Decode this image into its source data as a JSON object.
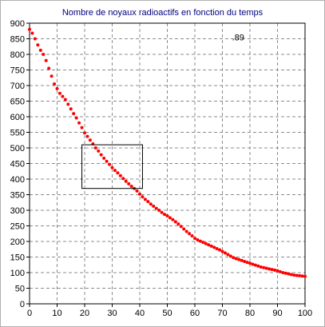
{
  "chart_data": {
    "type": "scatter",
    "title": "Nombre de noyaux radioactifs en fonction du temps",
    "xlabel": "",
    "ylabel": "",
    "xlim": [
      0,
      100
    ],
    "ylim": [
      0,
      900
    ],
    "xticks": [
      0,
      10,
      20,
      30,
      40,
      50,
      60,
      70,
      80,
      90,
      100
    ],
    "yticks": [
      0,
      50,
      100,
      150,
      200,
      250,
      300,
      350,
      400,
      450,
      500,
      550,
      600,
      650,
      700,
      750,
      800,
      850,
      900
    ],
    "grid": true,
    "marker_color": "#ff0000",
    "series": [
      {
        "points": [
          [
            0,
            880
          ],
          [
            1,
            868
          ],
          [
            2,
            850
          ],
          [
            3,
            830
          ],
          [
            4,
            813
          ],
          [
            5,
            800
          ],
          [
            6,
            780
          ],
          [
            7,
            755
          ],
          [
            8,
            730
          ],
          [
            9,
            705
          ],
          [
            10,
            690
          ],
          [
            11,
            675
          ],
          [
            12,
            665
          ],
          [
            13,
            655
          ],
          [
            14,
            640
          ],
          [
            15,
            625
          ],
          [
            16,
            610
          ],
          [
            17,
            596
          ],
          [
            18,
            580
          ],
          [
            19,
            565
          ],
          [
            20,
            548
          ],
          [
            21,
            537
          ],
          [
            22,
            525
          ],
          [
            23,
            513
          ],
          [
            24,
            500
          ],
          [
            25,
            490
          ],
          [
            26,
            478
          ],
          [
            27,
            467
          ],
          [
            28,
            457
          ],
          [
            29,
            447
          ],
          [
            30,
            437
          ],
          [
            31,
            428
          ],
          [
            32,
            420
          ],
          [
            33,
            411
          ],
          [
            34,
            402
          ],
          [
            35,
            393
          ],
          [
            36,
            385
          ],
          [
            37,
            377
          ],
          [
            38,
            370
          ],
          [
            39,
            362
          ],
          [
            40,
            352
          ],
          [
            41,
            343
          ],
          [
            42,
            335
          ],
          [
            43,
            328
          ],
          [
            44,
            320
          ],
          [
            45,
            313
          ],
          [
            46,
            306
          ],
          [
            47,
            300
          ],
          [
            48,
            293
          ],
          [
            49,
            287
          ],
          [
            50,
            282
          ],
          [
            51,
            276
          ],
          [
            52,
            270
          ],
          [
            53,
            263
          ],
          [
            54,
            256
          ],
          [
            55,
            248
          ],
          [
            56,
            240
          ],
          [
            57,
            232
          ],
          [
            58,
            225
          ],
          [
            59,
            218
          ],
          [
            60,
            210
          ],
          [
            61,
            205
          ],
          [
            62,
            201
          ],
          [
            63,
            197
          ],
          [
            64,
            193
          ],
          [
            65,
            189
          ],
          [
            66,
            185
          ],
          [
            67,
            181
          ],
          [
            68,
            177
          ],
          [
            69,
            173
          ],
          [
            70,
            168
          ],
          [
            71,
            163
          ],
          [
            72,
            158
          ],
          [
            73,
            153
          ],
          [
            74,
            148
          ],
          [
            75,
            145
          ],
          [
            76,
            142
          ],
          [
            77,
            139
          ],
          [
            78,
            136
          ],
          [
            79,
            133
          ],
          [
            80,
            130
          ],
          [
            81,
            127
          ],
          [
            82,
            124
          ],
          [
            83,
            121
          ],
          [
            84,
            118
          ],
          [
            85,
            116
          ],
          [
            86,
            114
          ],
          [
            87,
            112
          ],
          [
            88,
            110
          ],
          [
            89,
            108
          ],
          [
            90,
            106
          ],
          [
            91,
            103
          ],
          [
            92,
            100
          ],
          [
            93,
            98
          ],
          [
            94,
            96
          ],
          [
            95,
            94
          ],
          [
            96,
            92
          ],
          [
            97,
            91
          ],
          [
            98,
            90
          ],
          [
            99,
            89
          ],
          [
            100,
            88
          ]
        ]
      }
    ],
    "selection_box": {
      "x": [
        19,
        41
      ],
      "y": [
        370,
        510
      ]
    },
    "readout": ".89"
  }
}
